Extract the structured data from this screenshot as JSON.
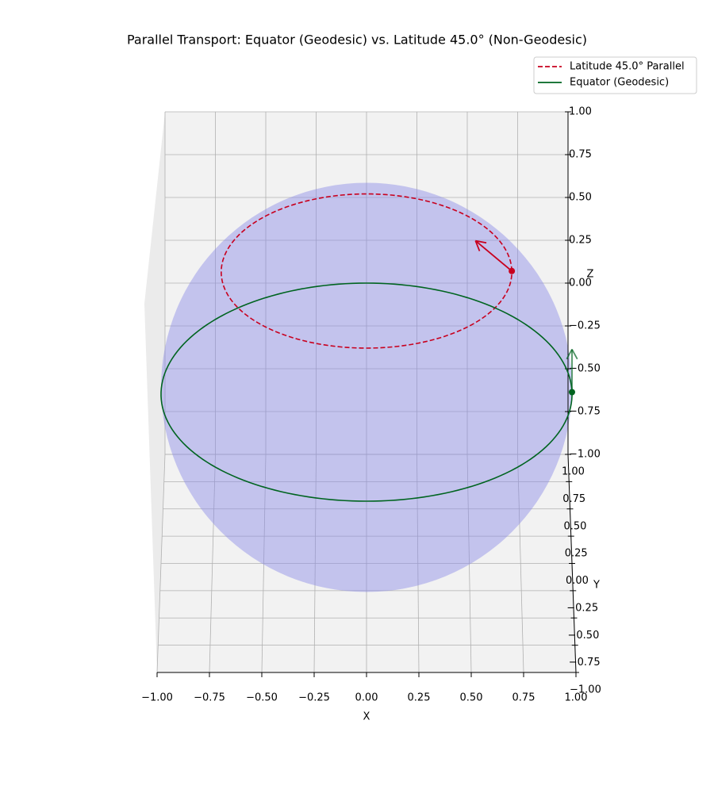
{
  "chart_data": {
    "type": "sphere-transport",
    "title": "Parallel Transport: Equator (Geodesic) vs. Latitude 45.0° (Non-Geodesic)",
    "xlabel": "X",
    "ylabel": "Y",
    "zlabel": "Z",
    "xlim": [
      -1,
      1
    ],
    "ylim": [
      -1,
      1
    ],
    "zlim": [
      -1,
      1
    ],
    "xticks": [
      {
        "value": -1,
        "label": "−1.00"
      },
      {
        "value": -0.75,
        "label": "−0.75"
      },
      {
        "value": -0.5,
        "label": "−0.50"
      },
      {
        "value": -0.25,
        "label": "−0.25"
      },
      {
        "value": 0,
        "label": "0.00"
      },
      {
        "value": 0.25,
        "label": "0.25"
      },
      {
        "value": 0.5,
        "label": "0.50"
      },
      {
        "value": 0.75,
        "label": "0.75"
      },
      {
        "value": 1,
        "label": "1.00"
      }
    ],
    "yticks": [
      {
        "value": -1,
        "label": "−1.00"
      },
      {
        "value": -0.75,
        "label": "−0.75"
      },
      {
        "value": -0.5,
        "label": "−0.50"
      },
      {
        "value": -0.25,
        "label": "−0.25"
      },
      {
        "value": 0,
        "label": "0.00"
      },
      {
        "value": 0.25,
        "label": "0.25"
      },
      {
        "value": 0.5,
        "label": "0.50"
      },
      {
        "value": 0.75,
        "label": "0.75"
      },
      {
        "value": 1,
        "label": "1.00"
      }
    ],
    "zticks": [
      {
        "value": -1,
        "label": "−1.00"
      },
      {
        "value": -0.75,
        "label": "−0.75"
      },
      {
        "value": -0.5,
        "label": "−0.50"
      },
      {
        "value": -0.25,
        "label": "−0.25"
      },
      {
        "value": 0,
        "label": "0.00"
      },
      {
        "value": 0.25,
        "label": "0.25"
      },
      {
        "value": 0.5,
        "label": "0.50"
      },
      {
        "value": 0.75,
        "label": "0.75"
      },
      {
        "value": 1,
        "label": "1.00"
      }
    ],
    "grid": true,
    "surface_color": "#8a8ae6",
    "legend": "upper right",
    "series": [
      {
        "name": "Latitude 45.0° Parallel",
        "color": "#c8001e",
        "dashed": true,
        "latitude": 45
      },
      {
        "name": "Equator (Geodesic)",
        "color": "#006420",
        "dashed": false,
        "latitude": 0
      }
    ]
  }
}
